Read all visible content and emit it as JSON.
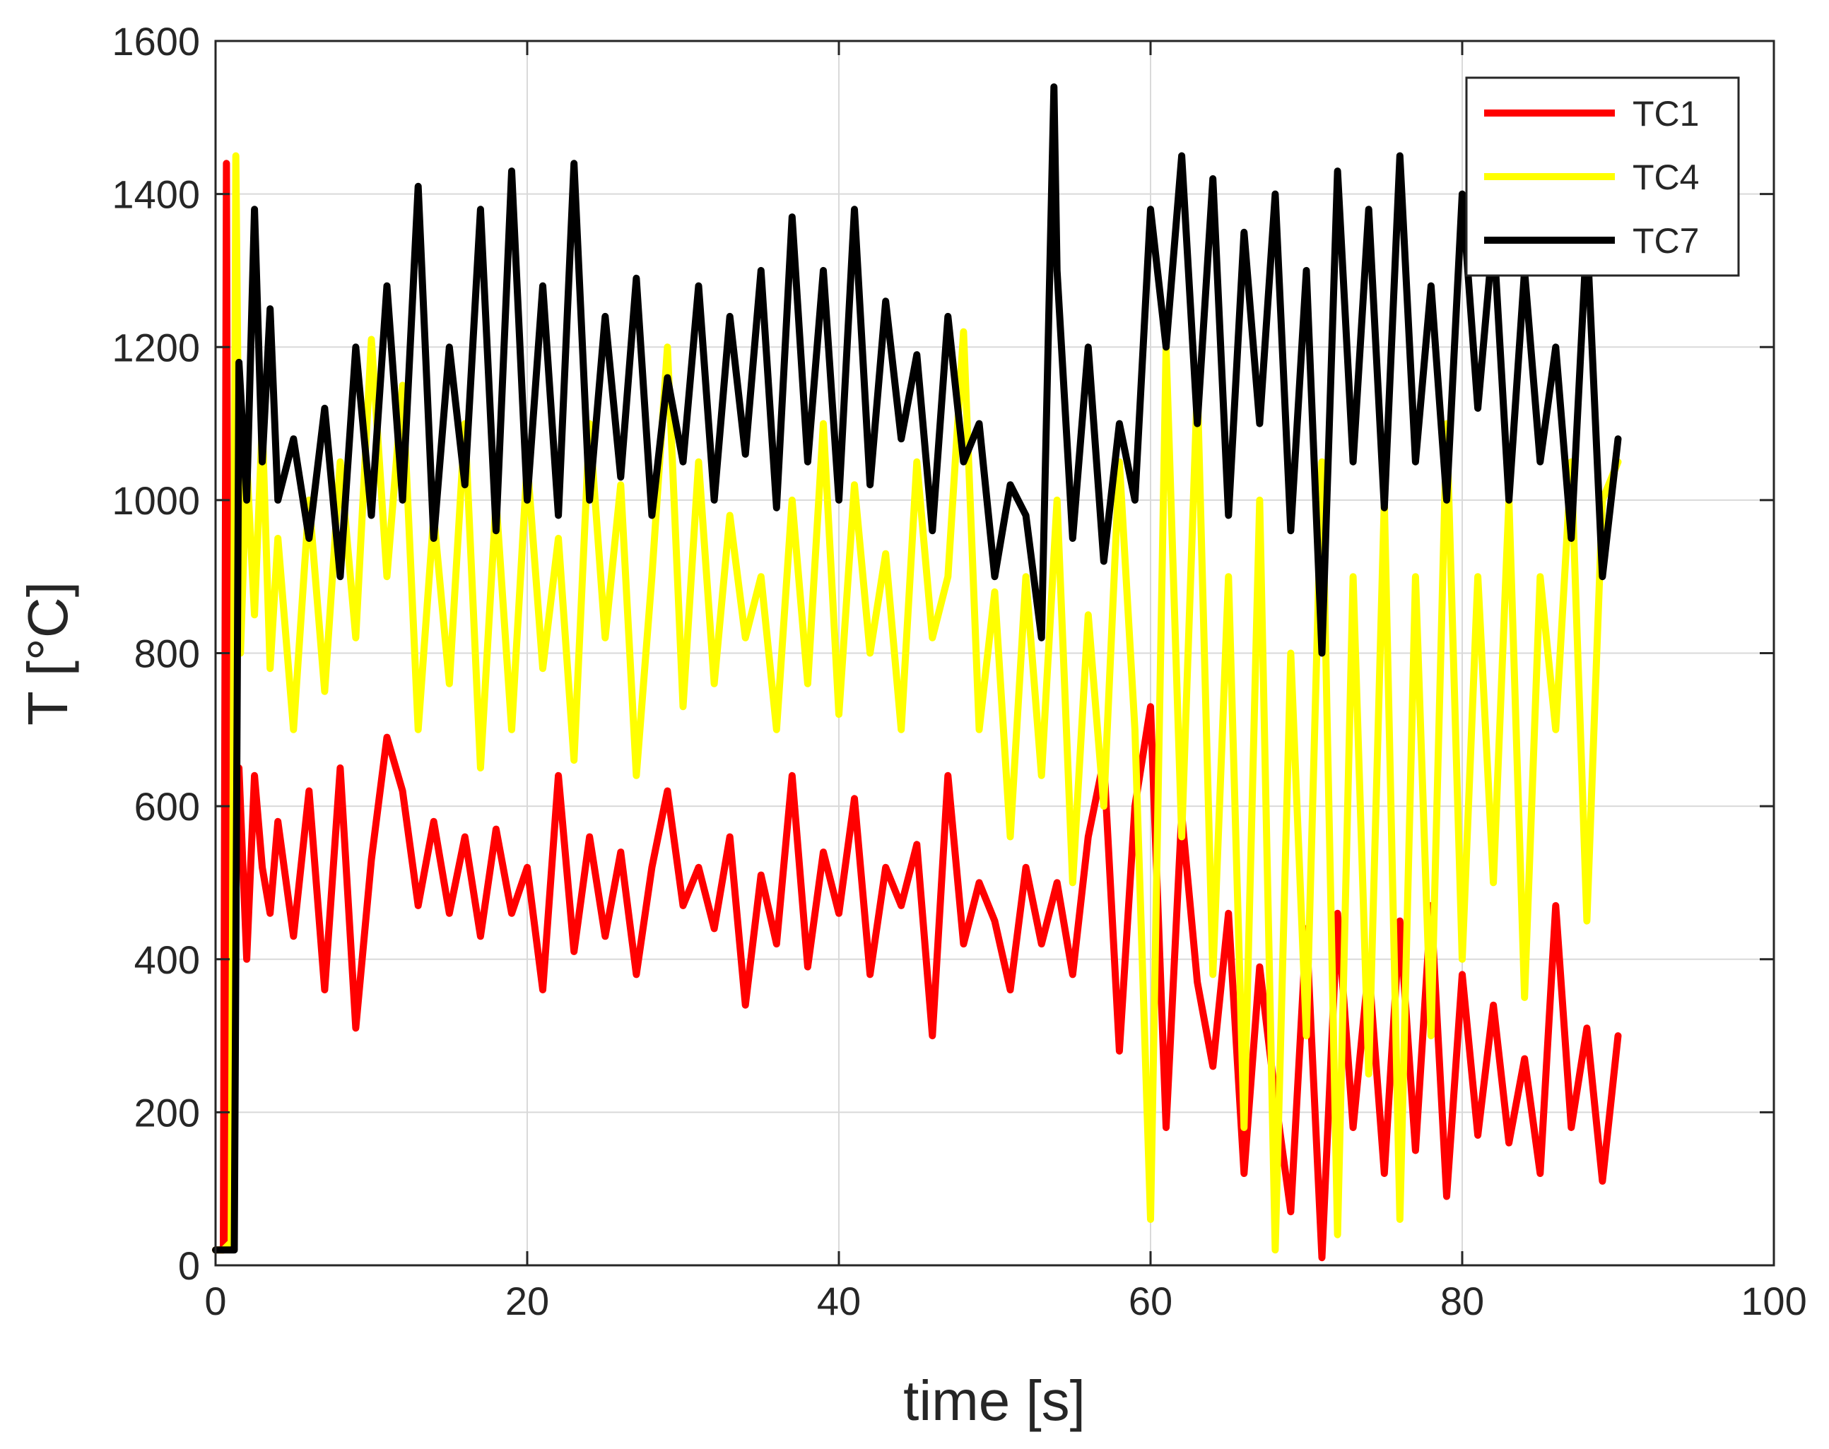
{
  "chart_data": {
    "type": "line",
    "title": "",
    "xlabel": "time [s]",
    "ylabel": "T [°C]",
    "xlim": [
      0,
      100
    ],
    "ylim": [
      0,
      1600
    ],
    "xticks": [
      0,
      20,
      40,
      60,
      80,
      100
    ],
    "yticks": [
      0,
      200,
      400,
      600,
      800,
      1000,
      1200,
      1400,
      1600
    ],
    "grid": true,
    "legend_position": "top-right",
    "series": [
      {
        "name": "TC1",
        "color": "#ff0000",
        "x": [
          0,
          0.5,
          0.7,
          0.9,
          1.2,
          1.5,
          2,
          2.5,
          3,
          3.5,
          4,
          5,
          6,
          7,
          8,
          9,
          10,
          11,
          12,
          13,
          14,
          15,
          16,
          17,
          18,
          19,
          20,
          21,
          22,
          23,
          24,
          25,
          26,
          27,
          28,
          29,
          30,
          31,
          32,
          33,
          34,
          35,
          36,
          37,
          38,
          39,
          40,
          41,
          42,
          43,
          44,
          45,
          46,
          47,
          48,
          49,
          50,
          51,
          52,
          53,
          54,
          55,
          56,
          57,
          58,
          59,
          60,
          61,
          62,
          63,
          64,
          65,
          66,
          67,
          68,
          69,
          70,
          71,
          72,
          73,
          74,
          75,
          76,
          77,
          78,
          79,
          80,
          81,
          82,
          83,
          84,
          85,
          86,
          87,
          88,
          89,
          90
        ],
        "y": [
          20,
          20,
          1440,
          30,
          450,
          650,
          400,
          640,
          520,
          460,
          580,
          430,
          620,
          360,
          650,
          310,
          530,
          690,
          620,
          470,
          580,
          460,
          560,
          430,
          570,
          460,
          520,
          360,
          640,
          410,
          560,
          430,
          540,
          380,
          520,
          620,
          470,
          520,
          440,
          560,
          340,
          510,
          420,
          640,
          390,
          540,
          460,
          610,
          380,
          520,
          470,
          550,
          300,
          640,
          420,
          500,
          450,
          360,
          520,
          420,
          500,
          380,
          560,
          660,
          280,
          600,
          730,
          180,
          590,
          370,
          260,
          460,
          120,
          390,
          220,
          70,
          440,
          10,
          460,
          180,
          390,
          120,
          450,
          150,
          470,
          90,
          380,
          170,
          340,
          160,
          270,
          120,
          470,
          180,
          310,
          110,
          300
        ]
      },
      {
        "name": "TC4",
        "color": "#ffff00",
        "x": [
          0,
          0.5,
          1,
          1.3,
          1.6,
          2,
          2.5,
          3,
          3.5,
          4,
          5,
          6,
          7,
          8,
          9,
          10,
          11,
          12,
          13,
          14,
          15,
          16,
          17,
          18,
          19,
          20,
          21,
          22,
          23,
          24,
          25,
          26,
          27,
          28,
          29,
          30,
          31,
          32,
          33,
          34,
          35,
          36,
          37,
          38,
          39,
          40,
          41,
          42,
          43,
          44,
          45,
          46,
          47,
          48,
          49,
          50,
          51,
          52,
          53,
          54,
          55,
          56,
          57,
          58,
          59,
          60,
          61,
          62,
          63,
          64,
          65,
          66,
          67,
          68,
          69,
          70,
          71,
          72,
          73,
          74,
          75,
          76,
          77,
          78,
          79,
          80,
          81,
          82,
          83,
          84,
          85,
          86,
          87,
          88,
          89,
          90
        ],
        "y": [
          20,
          20,
          30,
          1450,
          800,
          1050,
          850,
          1100,
          780,
          950,
          700,
          1000,
          750,
          1050,
          820,
          1210,
          900,
          1150,
          700,
          980,
          760,
          1100,
          650,
          1000,
          700,
          1050,
          780,
          950,
          660,
          1100,
          820,
          1020,
          640,
          900,
          1200,
          730,
          1050,
          760,
          980,
          820,
          900,
          700,
          1000,
          760,
          1100,
          720,
          1020,
          800,
          930,
          700,
          1050,
          820,
          900,
          1220,
          700,
          880,
          560,
          900,
          640,
          1000,
          500,
          850,
          600,
          1050,
          700,
          60,
          1200,
          560,
          1150,
          380,
          900,
          180,
          1000,
          20,
          800,
          300,
          1050,
          40,
          900,
          250,
          1000,
          60,
          900,
          300,
          1100,
          400,
          900,
          500,
          1000,
          350,
          900,
          700,
          1050,
          450,
          1000,
          1050
        ]
      },
      {
        "name": "TC7",
        "color": "#000000",
        "x": [
          0,
          0.8,
          1.2,
          1.5,
          2,
          2.5,
          3,
          3.5,
          4,
          5,
          6,
          7,
          8,
          9,
          10,
          11,
          12,
          13,
          14,
          15,
          16,
          17,
          18,
          19,
          20,
          21,
          22,
          23,
          24,
          25,
          26,
          27,
          28,
          29,
          30,
          31,
          32,
          33,
          34,
          35,
          36,
          37,
          38,
          39,
          40,
          41,
          42,
          43,
          44,
          45,
          46,
          47,
          48,
          49,
          50,
          51,
          52,
          53,
          53.8,
          54,
          55,
          56,
          57,
          58,
          59,
          60,
          61,
          62,
          63,
          64,
          65,
          66,
          67,
          68,
          69,
          70,
          71,
          72,
          73,
          74,
          75,
          76,
          77,
          78,
          79,
          80,
          81,
          82,
          83,
          84,
          85,
          86,
          87,
          88,
          89,
          90
        ],
        "y": [
          20,
          20,
          20,
          1180,
          1000,
          1380,
          1050,
          1250,
          1000,
          1080,
          950,
          1120,
          900,
          1200,
          980,
          1280,
          1000,
          1410,
          950,
          1200,
          1020,
          1380,
          960,
          1430,
          1000,
          1280,
          980,
          1440,
          1000,
          1240,
          1030,
          1290,
          980,
          1160,
          1050,
          1280,
          1000,
          1240,
          1060,
          1300,
          990,
          1370,
          1050,
          1300,
          1000,
          1380,
          1020,
          1260,
          1080,
          1190,
          960,
          1240,
          1050,
          1100,
          900,
          1020,
          980,
          820,
          1540,
          1300,
          950,
          1200,
          920,
          1100,
          1000,
          1380,
          1200,
          1450,
          1100,
          1420,
          980,
          1350,
          1100,
          1400,
          960,
          1300,
          800,
          1430,
          1050,
          1380,
          990,
          1450,
          1050,
          1280,
          1000,
          1400,
          1120,
          1350,
          1000,
          1300,
          1050,
          1200,
          950,
          1350,
          900,
          1080
        ]
      }
    ]
  }
}
